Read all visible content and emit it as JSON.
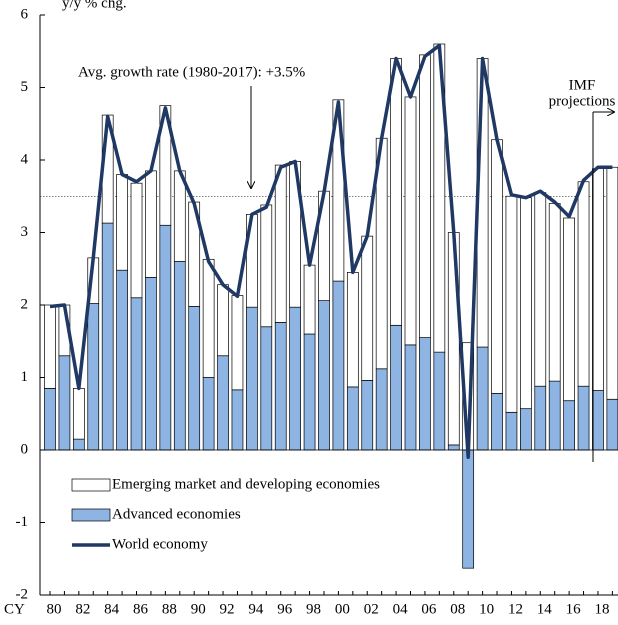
{
  "chart_data": {
    "type": "bar",
    "stacked": true,
    "unit_label": "y/y % chg.",
    "x_label": "CY",
    "categories": [
      "80",
      null,
      "82",
      null,
      "84",
      null,
      "86",
      null,
      "88",
      null,
      "90",
      null,
      "92",
      null,
      "94",
      null,
      "96",
      null,
      "98",
      null,
      "00",
      null,
      "02",
      null,
      "04",
      null,
      "06",
      null,
      "08",
      null,
      "10",
      null,
      "12",
      null,
      "14",
      null,
      "16",
      null,
      "18",
      null
    ],
    "series": [
      {
        "name": "Advanced economies",
        "type": "bar",
        "color": "#8eb4e3",
        "values": [
          0.85,
          1.3,
          0.15,
          2.02,
          3.13,
          2.48,
          2.1,
          2.38,
          3.1,
          2.6,
          1.98,
          1.0,
          1.3,
          0.83,
          1.97,
          1.7,
          1.76,
          1.97,
          1.6,
          2.06,
          2.33,
          0.87,
          0.96,
          1.12,
          1.72,
          1.45,
          1.55,
          1.35,
          0.07,
          -1.63,
          1.42,
          0.78,
          0.52,
          0.57,
          0.88,
          0.95,
          0.68,
          0.88,
          0.82,
          0.7
        ]
      },
      {
        "name": "Emerging market and developing economies",
        "type": "bar",
        "color": "#ffffff",
        "values": [
          1.15,
          0.7,
          0.7,
          0.63,
          1.49,
          1.32,
          1.58,
          1.47,
          1.65,
          1.25,
          1.44,
          1.63,
          0.98,
          1.3,
          1.28,
          1.68,
          2.17,
          2.01,
          0.95,
          1.51,
          2.5,
          1.58,
          1.99,
          3.18,
          3.68,
          3.42,
          3.9,
          4.25,
          2.93,
          1.48,
          3.98,
          3.5,
          2.98,
          2.91,
          2.67,
          2.45,
          2.52,
          2.82,
          3.06,
          3.2
        ]
      },
      {
        "name": "World economy",
        "type": "line",
        "color": "#1f3864",
        "values": [
          1.98,
          2.0,
          0.85,
          2.65,
          4.6,
          3.8,
          3.7,
          3.85,
          4.72,
          3.85,
          3.4,
          2.6,
          2.28,
          2.12,
          3.25,
          3.35,
          3.9,
          3.98,
          2.55,
          3.55,
          4.8,
          2.45,
          2.95,
          4.3,
          5.4,
          4.87,
          5.43,
          5.58,
          3.0,
          -0.1,
          5.4,
          4.28,
          3.52,
          3.48,
          3.57,
          3.42,
          3.22,
          3.72,
          3.9,
          3.9
        ]
      }
    ],
    "ylim": [
      -2,
      6
    ],
    "yticks": [
      -2,
      -1,
      0,
      1,
      2,
      3,
      4,
      5,
      6
    ],
    "reference_line": 3.5,
    "annotations": [
      "Avg. growth rate (1980-2017): +3.5%",
      "IMF",
      "projections"
    ],
    "legend": "lower left"
  }
}
